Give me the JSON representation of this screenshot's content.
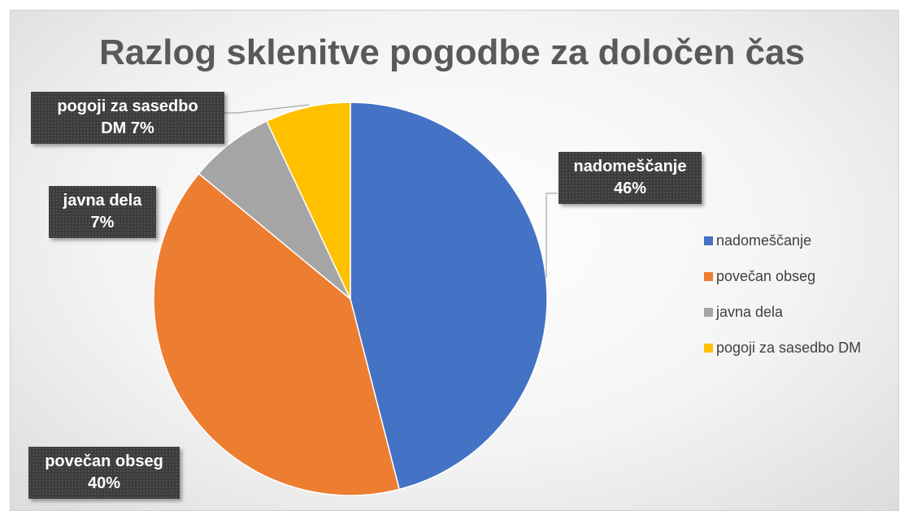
{
  "chart_data": {
    "type": "pie",
    "title": "Razlog sklenitve pogodbe za določen čas",
    "slices": [
      {
        "name": "nadomeščanje",
        "value": 46,
        "color": "#4472C4",
        "label_line1": "nadomeščanje",
        "label_line2": "46%"
      },
      {
        "name": "povečan obseg",
        "value": 40,
        "color": "#ED7D31",
        "label_line1": "povečan obseg",
        "label_line2": "40%"
      },
      {
        "name": "javna dela",
        "value": 7,
        "color": "#A5A5A5",
        "label_line1": "javna dela",
        "label_line2": "7%"
      },
      {
        "name": "pogoji za sasedbo DM",
        "value": 7,
        "color": "#FFC000",
        "label_line1": "pogoji za sasedbo",
        "label_line2": "DM 7%"
      }
    ],
    "legend": {
      "position": "right",
      "items": [
        "nadomeščanje",
        "povečan obseg",
        "javna dela",
        "pogoji za sasedbo DM"
      ]
    }
  }
}
